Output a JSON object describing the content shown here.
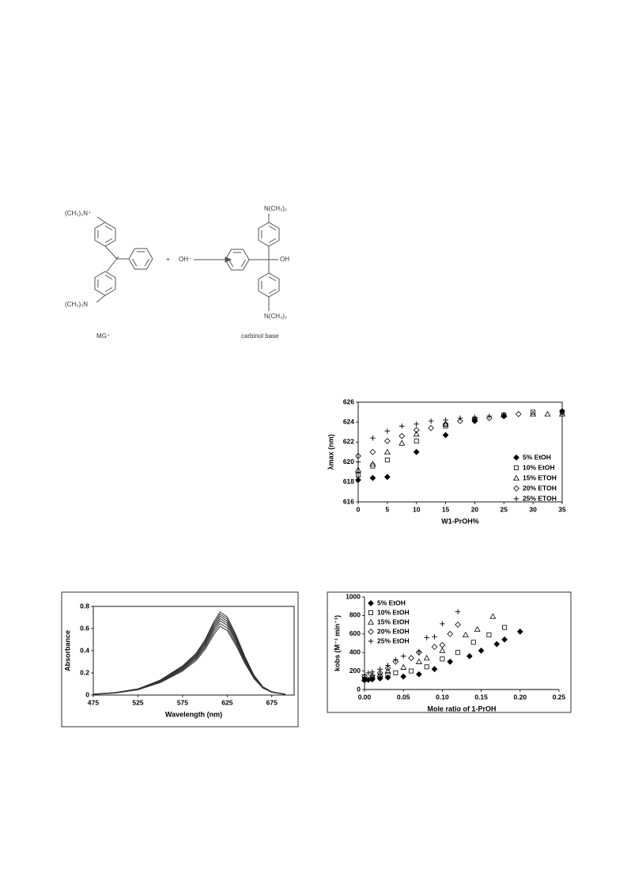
{
  "scheme": {
    "reactant_top_group": "(CH₃)₂N⁺",
    "reactant_bottom_group": "(CH₃)₂N",
    "plus": "+",
    "hydroxide": "OH⁻",
    "reactant_label": "MG⁺",
    "product_top_group": "N(CH₃)₂",
    "product_bottom_group": "N(CH₃)₂",
    "product_oh": "OH",
    "product_label": "carbinol base"
  },
  "chart_data": [
    {
      "type": "scatter",
      "xlabel": "W1-PrOH%",
      "ylabel": "λmax (nm)",
      "xlim": [
        0,
        35
      ],
      "xticks": [
        0,
        5,
        10,
        15,
        20,
        25,
        30,
        35
      ],
      "ylim": [
        616,
        626
      ],
      "yticks": [
        616,
        618,
        620,
        622,
        624,
        626
      ],
      "legend": "right",
      "series": [
        {
          "name": "5% EtOH",
          "marker": "diamond-filled",
          "color": "#000000",
          "x": [
            0,
            2.5,
            5,
            10,
            15,
            20,
            25,
            35
          ],
          "values": [
            618.2,
            618.4,
            618.5,
            621,
            622.7,
            624.1,
            624.6,
            625.1
          ]
        },
        {
          "name": "10% EtOH",
          "marker": "square-open",
          "color": "#000000",
          "x": [
            0,
            2.5,
            5,
            10,
            15,
            20,
            25,
            30,
            35
          ],
          "values": [
            618.7,
            619.6,
            620.2,
            622.1,
            623.6,
            624.3,
            624.7,
            625,
            625
          ]
        },
        {
          "name": "15% ETOH",
          "marker": "triangle-open",
          "color": "#000000",
          "x": [
            0,
            2.5,
            5,
            7.5,
            10,
            15,
            20,
            25,
            30,
            32.5,
            35
          ],
          "values": [
            619.2,
            619.8,
            621,
            621.9,
            622.8,
            623.8,
            624.3,
            624.7,
            624.8,
            624.8,
            624.8
          ]
        },
        {
          "name": "20% ETOH",
          "marker": "diamond-open",
          "color": "#000000",
          "x": [
            0,
            2.5,
            5,
            7.5,
            10,
            12.5,
            15,
            17.5,
            20,
            22.5,
            25,
            27.5
          ],
          "values": [
            620.6,
            621,
            622.1,
            622.6,
            623.2,
            623.4,
            623.8,
            624.1,
            624.3,
            624.4,
            624.6,
            624.8
          ]
        },
        {
          "name": "25% ETOH",
          "marker": "plus",
          "color": "#000000",
          "x": [
            0,
            2.5,
            5,
            7.5,
            10,
            12.5,
            15,
            17.5,
            20,
            22.5,
            25
          ],
          "values": [
            620,
            622.4,
            623.1,
            623.6,
            623.8,
            624.1,
            624.2,
            624.4,
            624.5,
            624.6,
            624.7
          ]
        }
      ]
    },
    {
      "type": "line",
      "xlabel": "Wavelength (nm)",
      "ylabel": "Absorbance",
      "xlim": [
        475,
        700
      ],
      "xticks": [
        475,
        525,
        575,
        625,
        675
      ],
      "ylim": [
        0,
        0.8
      ],
      "yticks": [
        0,
        0.2,
        0.4,
        0.6,
        0.8
      ],
      "x": [
        475,
        500,
        525,
        550,
        575,
        590,
        600,
        610,
        617,
        625,
        635,
        645,
        655,
        665,
        675,
        690
      ],
      "series": [
        {
          "color": "#333333",
          "values": [
            0.006,
            0.019,
            0.047,
            0.112,
            0.217,
            0.31,
            0.409,
            0.546,
            0.62,
            0.583,
            0.446,
            0.285,
            0.149,
            0.062,
            0.025,
            0.006
          ]
        },
        {
          "color": "#333333",
          "values": [
            0.006,
            0.019,
            0.048,
            0.116,
            0.226,
            0.323,
            0.426,
            0.568,
            0.645,
            0.606,
            0.464,
            0.297,
            0.155,
            0.065,
            0.026,
            0.006
          ]
        },
        {
          "color": "#333333",
          "values": [
            0.007,
            0.02,
            0.05,
            0.121,
            0.235,
            0.335,
            0.442,
            0.59,
            0.67,
            0.63,
            0.482,
            0.308,
            0.161,
            0.067,
            0.027,
            0.007
          ]
        },
        {
          "color": "#333333",
          "values": [
            0.007,
            0.021,
            0.052,
            0.124,
            0.242,
            0.345,
            0.455,
            0.607,
            0.69,
            0.649,
            0.497,
            0.317,
            0.166,
            0.069,
            0.028,
            0.007
          ]
        },
        {
          "color": "#333333",
          "values": [
            0.007,
            0.021,
            0.053,
            0.128,
            0.249,
            0.355,
            0.469,
            0.625,
            0.71,
            0.667,
            0.511,
            0.327,
            0.17,
            0.071,
            0.028,
            0.007
          ]
        },
        {
          "color": "#333333",
          "values": [
            0.007,
            0.022,
            0.055,
            0.131,
            0.256,
            0.365,
            0.482,
            0.642,
            0.73,
            0.686,
            0.526,
            0.336,
            0.175,
            0.073,
            0.029,
            0.007
          ]
        },
        {
          "color": "#333333",
          "values": [
            0.008,
            0.023,
            0.056,
            0.135,
            0.263,
            0.375,
            0.495,
            0.66,
            0.75,
            0.705,
            0.54,
            0.345,
            0.18,
            0.075,
            0.03,
            0.008
          ]
        }
      ]
    },
    {
      "type": "scatter",
      "xlabel": "Mole ratio of 1-PrOH",
      "ylabel": "kobs (M⁻¹ min⁻¹)",
      "xlim": [
        0,
        0.25
      ],
      "xticks": [
        {
          "value": 0,
          "label": "0.00"
        },
        0.05,
        {
          "value": 0.1,
          "label": "0.10"
        },
        0.15,
        {
          "value": 0.2,
          "label": "0.20"
        },
        0.25
      ],
      "ylim": [
        0,
        1000
      ],
      "yticks": [
        0,
        200,
        400,
        600,
        800,
        1000
      ],
      "legend": "upper left",
      "series": [
        {
          "name": "5% EtOH",
          "marker": "diamond-filled",
          "color": "#000000",
          "x": [
            0,
            0.005,
            0.01,
            0.02,
            0.03,
            0.05,
            0.07,
            0.09,
            0.11,
            0.135,
            0.15,
            0.17,
            0.18,
            0.2
          ],
          "values": [
            100,
            105,
            110,
            120,
            130,
            140,
            165,
            220,
            300,
            360,
            420,
            490,
            540,
            625
          ]
        },
        {
          "name": "10% EtOH",
          "marker": "square-open",
          "color": "#000000",
          "x": [
            0,
            0.01,
            0.02,
            0.03,
            0.04,
            0.06,
            0.08,
            0.1,
            0.12,
            0.14,
            0.16,
            0.18
          ],
          "values": [
            110,
            125,
            140,
            160,
            180,
            200,
            245,
            330,
            400,
            510,
            590,
            670
          ]
        },
        {
          "name": "15% EtOH",
          "marker": "triangle-open",
          "color": "#000000",
          "x": [
            0,
            0.01,
            0.02,
            0.03,
            0.05,
            0.07,
            0.08,
            0.1,
            0.13,
            0.145,
            0.165
          ],
          "values": [
            120,
            140,
            160,
            200,
            240,
            300,
            340,
            420,
            590,
            650,
            790
          ]
        },
        {
          "name": "20% EtOH",
          "marker": "diamond-open",
          "color": "#000000",
          "x": [
            0,
            0.01,
            0.02,
            0.03,
            0.04,
            0.06,
            0.07,
            0.09,
            0.1,
            0.11,
            0.12
          ],
          "values": [
            140,
            150,
            180,
            230,
            300,
            340,
            400,
            460,
            480,
            600,
            700
          ]
        },
        {
          "name": "25% EtOH",
          "marker": "plus",
          "color": "#000000",
          "x": [
            0,
            0.005,
            0.01,
            0.02,
            0.03,
            0.04,
            0.05,
            0.07,
            0.08,
            0.09,
            0.1,
            0.12
          ],
          "values": [
            160,
            180,
            190,
            220,
            260,
            320,
            360,
            410,
            560,
            570,
            710,
            840
          ]
        }
      ]
    }
  ]
}
